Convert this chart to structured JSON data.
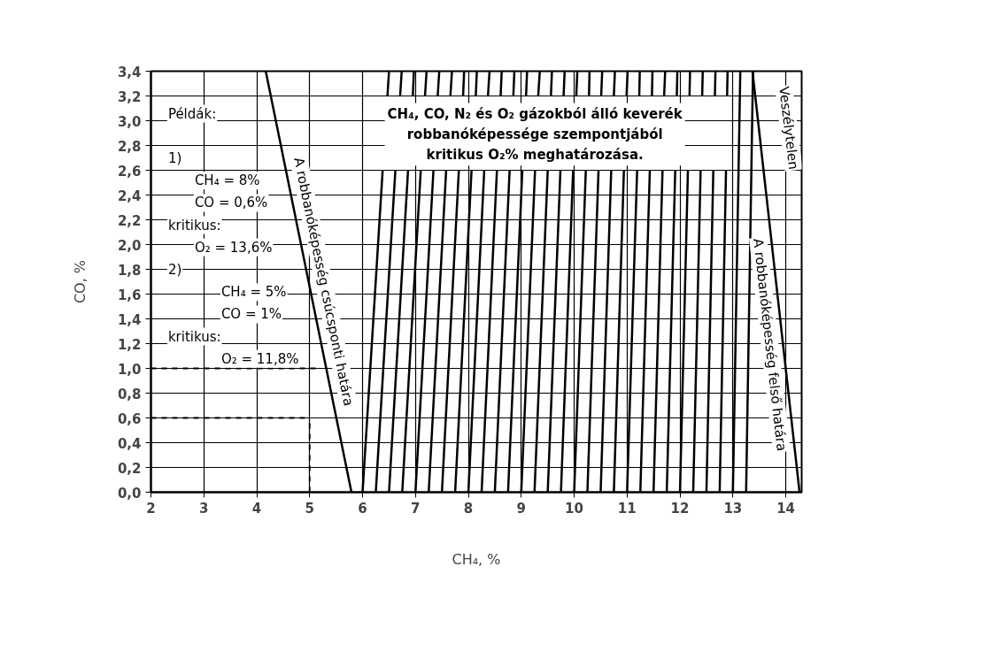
{
  "chart_data": {
    "type": "line",
    "xlabel": "CH₄, %",
    "ylabel": "CO, %",
    "xlim": [
      2,
      14.3
    ],
    "ylim": [
      0,
      3.4
    ],
    "xticks": [
      2,
      3,
      4,
      5,
      6,
      7,
      8,
      9,
      10,
      11,
      12,
      13,
      14
    ],
    "yticks": [
      {
        "value": 0,
        "label": "0,0"
      },
      {
        "value": 0.2,
        "label": "0,2"
      },
      {
        "value": 0.4,
        "label": "0,4"
      },
      {
        "value": 0.6,
        "label": "0,6"
      },
      {
        "value": 0.8,
        "label": "0,8"
      },
      {
        "value": 1.0,
        "label": "1,0"
      },
      {
        "value": 1.2,
        "label": "1,2"
      },
      {
        "value": 1.4,
        "label": "1,4"
      },
      {
        "value": 1.6,
        "label": "1,6"
      },
      {
        "value": 1.8,
        "label": "1,8"
      },
      {
        "value": 2.0,
        "label": "2,0"
      },
      {
        "value": 2.2,
        "label": "2,2"
      },
      {
        "value": 2.4,
        "label": "2,4"
      },
      {
        "value": 2.6,
        "label": "2,6"
      },
      {
        "value": 2.8,
        "label": "2,8"
      },
      {
        "value": 3.0,
        "label": "3,0"
      },
      {
        "value": 3.2,
        "label": "3,2"
      },
      {
        "value": 3.4,
        "label": "3,4"
      }
    ],
    "grid": true,
    "legend": false,
    "line_style": "solid",
    "annotations": [
      "CH₄, CO, N₂ és O₂ gázokból álló keverék\nrobbanóképessége szempontjából\nkritikus O₂% meghatározása.",
      "Példák:\n\n1)\n     CH₄ = 8%\n     CO = 0,6%\nkritikus:\n     O₂ = 13,6%\n2)\n          CH₄ = 5%\n          CO = 1%\nkritikus:\n          O₂ = 11,8%",
      "Veszélytelen"
    ],
    "series": [
      {
        "name": "A robbanóképesség csúcsponti határa",
        "color": "#000000",
        "x": [
          5.79,
          4.17
        ],
        "values": [
          0,
          3.4
        ]
      },
      {
        "name": "A robbanóképesség felső határa",
        "color": "#000000",
        "x": [
          14.26,
          13.37
        ],
        "values": [
          0,
          3.4
        ]
      },
      {
        "color": "#000000",
        "line_style": "dashed",
        "x": [
          2,
          5.2
        ],
        "values": [
          1.0,
          1.0
        ]
      },
      {
        "color": "#000000",
        "line_style": "dashed",
        "x": [
          2,
          5
        ],
        "values": [
          0.6,
          0.6
        ]
      },
      {
        "color": "#000000",
        "line_style": "dashed",
        "x": [
          5,
          5
        ],
        "values": [
          0,
          0.6
        ]
      },
      {
        "color": "#000000",
        "x": [
          6.0,
          6.38,
          null,
          6.47,
          6.5
        ],
        "values": [
          0,
          2.6,
          null,
          3.2,
          3.4
        ]
      },
      {
        "color": "#000000",
        "x": [
          6.25,
          6.62,
          null,
          6.71,
          6.74
        ],
        "values": [
          0,
          2.6,
          null,
          3.2,
          3.4
        ]
      },
      {
        "color": "#000000",
        "x": [
          6.5,
          6.86,
          null,
          6.95,
          6.97
        ],
        "values": [
          0,
          2.6,
          null,
          3.2,
          3.4
        ]
      },
      {
        "color": "#000000",
        "x": [
          6.75,
          7.1,
          null,
          7.18,
          7.21
        ],
        "values": [
          0,
          2.6,
          null,
          3.2,
          3.4
        ]
      },
      {
        "color": "#000000",
        "x": [
          7.0,
          7.34,
          null,
          7.42,
          7.45
        ],
        "values": [
          0,
          2.6,
          null,
          3.2,
          3.4
        ]
      },
      {
        "color": "#000000",
        "x": [
          7.25,
          7.58,
          null,
          7.66,
          7.69
        ],
        "values": [
          0,
          2.6,
          null,
          3.2,
          3.4
        ]
      },
      {
        "color": "#000000",
        "x": [
          7.5,
          7.82,
          null,
          7.9,
          7.92
        ],
        "values": [
          0,
          2.6,
          null,
          3.2,
          3.4
        ]
      },
      {
        "color": "#000000",
        "x": [
          7.75,
          8.06,
          null,
          8.14,
          8.16
        ],
        "values": [
          0,
          2.6,
          null,
          3.2,
          3.4
        ]
      },
      {
        "color": "#000000",
        "x": [
          8.0,
          8.3,
          null,
          8.37,
          8.4
        ],
        "values": [
          0,
          2.6,
          null,
          3.2,
          3.4
        ]
      },
      {
        "color": "#000000",
        "x": [
          8.25,
          8.54,
          null,
          8.61,
          8.63
        ],
        "values": [
          0,
          2.6,
          null,
          3.2,
          3.4
        ]
      },
      {
        "color": "#000000",
        "x": [
          8.5,
          8.78,
          null,
          8.85,
          8.87
        ],
        "values": [
          0,
          2.6,
          null,
          3.2,
          3.4
        ]
      },
      {
        "color": "#000000",
        "x": [
          8.75,
          9.02,
          null,
          9.09,
          9.11
        ],
        "values": [
          0,
          2.6,
          null,
          3.2,
          3.4
        ]
      },
      {
        "color": "#000000",
        "x": [
          9.0,
          9.26,
          null,
          9.32,
          9.35
        ],
        "values": [
          0,
          2.6,
          null,
          3.2,
          3.4
        ]
      },
      {
        "color": "#000000",
        "x": [
          9.25,
          9.5,
          null,
          9.56,
          9.58
        ],
        "values": [
          0,
          2.6,
          null,
          3.2,
          3.4
        ]
      },
      {
        "color": "#000000",
        "x": [
          9.5,
          9.74,
          null,
          9.8,
          9.82
        ],
        "values": [
          0,
          2.6,
          null,
          3.2,
          3.4
        ]
      },
      {
        "color": "#000000",
        "x": [
          9.75,
          9.98,
          null,
          10.04,
          10.06
        ],
        "values": [
          0,
          2.6,
          null,
          3.2,
          3.4
        ]
      },
      {
        "color": "#000000",
        "x": [
          10.0,
          10.22,
          null,
          10.28,
          10.29
        ],
        "values": [
          0,
          2.6,
          null,
          3.2,
          3.4
        ]
      },
      {
        "color": "#000000",
        "x": [
          10.25,
          10.46,
          null,
          10.51,
          10.53
        ],
        "values": [
          0,
          2.6,
          null,
          3.2,
          3.4
        ]
      },
      {
        "color": "#000000",
        "x": [
          10.5,
          10.7,
          null,
          10.75,
          10.77
        ],
        "values": [
          0,
          2.6,
          null,
          3.2,
          3.4
        ]
      },
      {
        "color": "#000000",
        "x": [
          10.75,
          10.94,
          null,
          10.99,
          11.01
        ],
        "values": [
          0,
          2.6,
          null,
          3.2,
          3.4
        ]
      },
      {
        "color": "#000000",
        "x": [
          11.0,
          11.19,
          null,
          11.23,
          11.24
        ],
        "values": [
          0,
          2.6,
          null,
          3.2,
          3.4
        ]
      },
      {
        "color": "#000000",
        "x": [
          11.25,
          11.43,
          null,
          11.47,
          11.48
        ],
        "values": [
          0,
          2.6,
          null,
          3.2,
          3.4
        ]
      },
      {
        "color": "#000000",
        "x": [
          11.5,
          11.67,
          null,
          11.7,
          11.72
        ],
        "values": [
          0,
          2.6,
          null,
          3.2,
          3.4
        ]
      },
      {
        "color": "#000000",
        "x": [
          11.75,
          11.91,
          null,
          11.94,
          11.95
        ],
        "values": [
          0,
          2.6,
          null,
          3.2,
          3.4
        ]
      },
      {
        "color": "#000000",
        "x": [
          12.0,
          12.15,
          null,
          12.18,
          12.19
        ],
        "values": [
          0,
          2.6,
          null,
          3.2,
          3.4
        ]
      },
      {
        "color": "#000000",
        "x": [
          12.25,
          12.39,
          null,
          12.42,
          12.43
        ],
        "values": [
          0,
          2.6,
          null,
          3.2,
          3.4
        ]
      },
      {
        "color": "#000000",
        "x": [
          12.5,
          12.63,
          null,
          12.66,
          12.67
        ],
        "values": [
          0,
          2.6,
          null,
          3.2,
          3.4
        ]
      },
      {
        "color": "#000000",
        "x": [
          12.75,
          12.87,
          null,
          12.89,
          12.9
        ],
        "values": [
          0,
          2.6,
          null,
          3.2,
          3.4
        ]
      },
      {
        "color": "#000000",
        "x": [
          13.0,
          13.14
        ],
        "values": [
          0,
          3.4
        ]
      },
      {
        "color": "#000000",
        "x": [
          13.25,
          13.38
        ],
        "values": [
          0,
          3.4
        ]
      }
    ]
  }
}
